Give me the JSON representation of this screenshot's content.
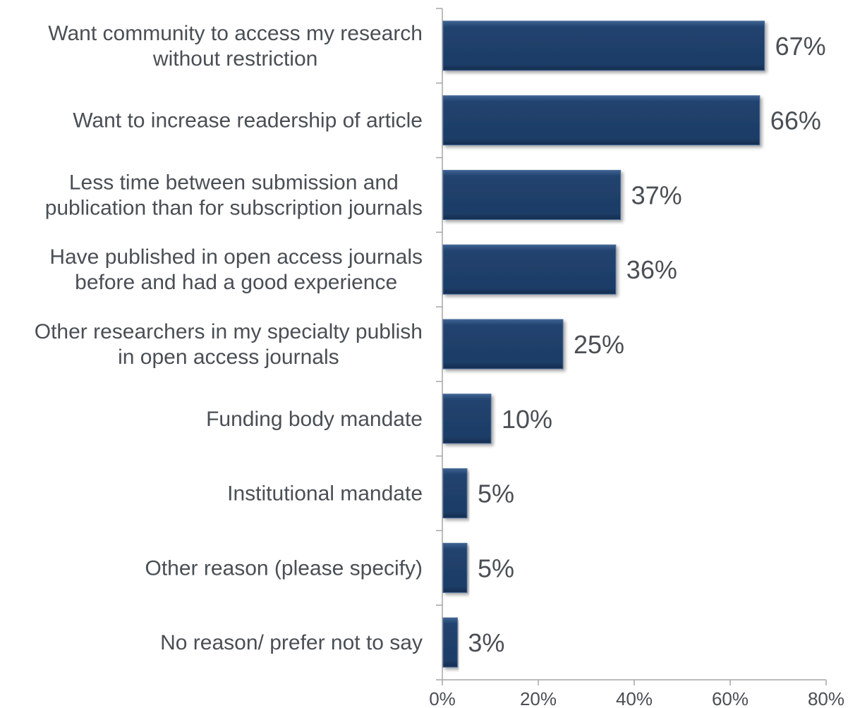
{
  "chart_data": {
    "type": "bar",
    "orientation": "horizontal",
    "categories": [
      [
        "Want community to access my research",
        "without restriction"
      ],
      [
        "Want to increase readership of article"
      ],
      [
        "Less time between submission and",
        "publication than for subscription journals"
      ],
      [
        "Have published in open access journals",
        "before and had a good experience"
      ],
      [
        "Other researchers in my specialty publish",
        "in open access journals"
      ],
      [
        "Funding body mandate"
      ],
      [
        "Institutional mandate"
      ],
      [
        "Other reason (please specify)"
      ],
      [
        "No reason/ prefer not to say"
      ]
    ],
    "values": [
      67,
      66,
      37,
      36,
      25,
      10,
      5,
      5,
      3
    ],
    "value_labels": [
      "67%",
      "66%",
      "37%",
      "36%",
      "25%",
      "10%",
      "5%",
      "5%",
      "3%"
    ],
    "xlim": [
      0,
      80
    ],
    "xticks": [
      0,
      20,
      40,
      60,
      80
    ],
    "xtick_labels": [
      "0%",
      "20%",
      "40%",
      "60%",
      "80%"
    ],
    "title": "",
    "xlabel": "",
    "ylabel": "",
    "grid": false,
    "legend": "none",
    "colors": {
      "bar_fill": "#1f3f6b",
      "bar_edge": "#4d6f9c",
      "axis": "#a6a6a6",
      "text": "#4a4f55"
    }
  }
}
